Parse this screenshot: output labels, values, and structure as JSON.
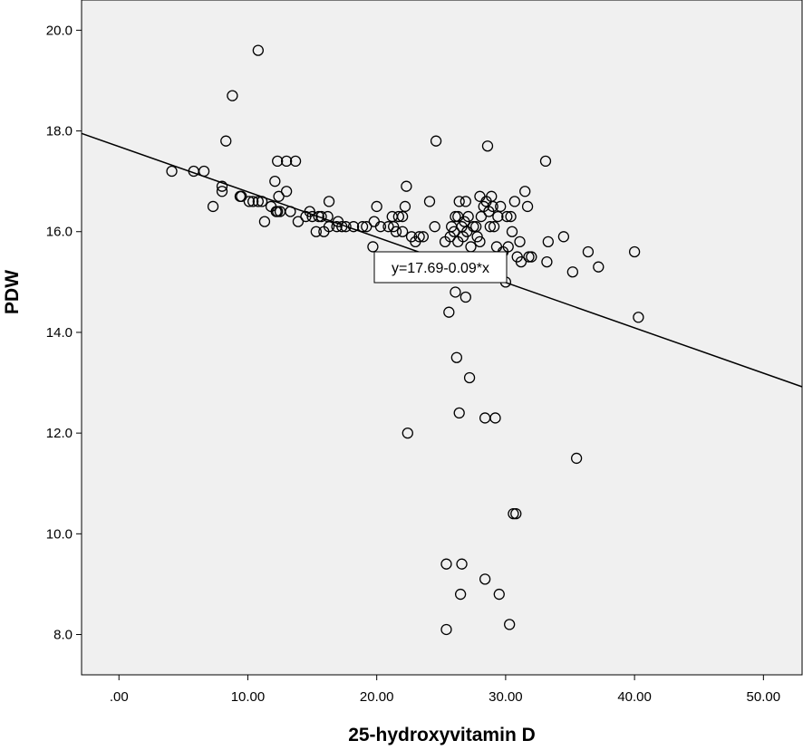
{
  "chart_data": {
    "type": "scatter",
    "xlabel": "25-hydroxyvitamin D",
    "ylabel": "PDW",
    "xlim": [
      -2.9,
      53.0
    ],
    "ylim": [
      7.2,
      20.6
    ],
    "x_ticks": [
      0,
      10,
      20,
      30,
      40,
      50
    ],
    "x_tick_labels": [
      ".00",
      "10.00",
      "20.00",
      "30.00",
      "40.00",
      "50.00"
    ],
    "y_ticks": [
      8,
      10,
      12,
      14,
      16,
      18,
      20
    ],
    "y_tick_labels": [
      "8.0",
      "10.0",
      "12.0",
      "14.0",
      "16.0",
      "18.0",
      "20.0"
    ],
    "grid": false,
    "background_color": "#f0f0f0",
    "marker": "open-circle",
    "fit_line": {
      "intercept": 17.69,
      "slope": -0.09,
      "label": "y=17.69-0.09*x"
    },
    "points": [
      [
        4.1,
        17.2
      ],
      [
        5.8,
        17.2
      ],
      [
        6.6,
        17.2
      ],
      [
        7.3,
        16.5
      ],
      [
        8.0,
        16.9
      ],
      [
        8.0,
        16.8
      ],
      [
        8.3,
        17.8
      ],
      [
        8.8,
        18.7
      ],
      [
        9.4,
        16.7
      ],
      [
        9.5,
        16.7
      ],
      [
        10.1,
        16.6
      ],
      [
        10.4,
        16.6
      ],
      [
        10.8,
        16.6
      ],
      [
        11.1,
        16.6
      ],
      [
        11.3,
        16.2
      ],
      [
        10.8,
        19.6
      ],
      [
        11.8,
        16.5
      ],
      [
        12.1,
        17.0
      ],
      [
        12.2,
        16.4
      ],
      [
        12.3,
        16.4
      ],
      [
        12.3,
        17.4
      ],
      [
        12.5,
        16.4
      ],
      [
        12.4,
        16.7
      ],
      [
        13.0,
        16.8
      ],
      [
        13.0,
        17.4
      ],
      [
        13.3,
        16.4
      ],
      [
        13.7,
        17.4
      ],
      [
        13.9,
        16.2
      ],
      [
        14.5,
        16.3
      ],
      [
        14.8,
        16.4
      ],
      [
        15.0,
        16.3
      ],
      [
        15.3,
        16.0
      ],
      [
        15.5,
        16.3
      ],
      [
        15.7,
        16.3
      ],
      [
        15.9,
        16.0
      ],
      [
        16.2,
        16.3
      ],
      [
        16.3,
        16.1
      ],
      [
        16.3,
        16.6
      ],
      [
        16.9,
        16.1
      ],
      [
        17.0,
        16.2
      ],
      [
        17.3,
        16.1
      ],
      [
        17.6,
        16.1
      ],
      [
        18.2,
        16.1
      ],
      [
        18.9,
        16.1
      ],
      [
        19.2,
        16.1
      ],
      [
        19.7,
        15.7
      ],
      [
        19.8,
        16.2
      ],
      [
        20.0,
        16.5
      ],
      [
        20.3,
        16.1
      ],
      [
        20.7,
        15.1
      ],
      [
        20.9,
        16.1
      ],
      [
        21.2,
        16.3
      ],
      [
        21.3,
        16.1
      ],
      [
        21.5,
        16.0
      ],
      [
        21.7,
        16.3
      ],
      [
        22.0,
        16.3
      ],
      [
        22.0,
        16.0
      ],
      [
        22.2,
        16.5
      ],
      [
        22.3,
        16.9
      ],
      [
        22.4,
        12.0
      ],
      [
        22.7,
        15.9
      ],
      [
        23.0,
        15.8
      ],
      [
        23.3,
        15.9
      ],
      [
        23.6,
        15.9
      ],
      [
        24.1,
        16.6
      ],
      [
        24.5,
        16.1
      ],
      [
        24.6,
        17.8
      ],
      [
        25.3,
        15.8
      ],
      [
        25.4,
        9.4
      ],
      [
        25.4,
        8.1
      ],
      [
        25.6,
        14.4
      ],
      [
        25.7,
        15.9
      ],
      [
        25.8,
        16.1
      ],
      [
        26.0,
        16.0
      ],
      [
        26.1,
        16.3
      ],
      [
        26.1,
        14.8
      ],
      [
        26.2,
        13.5
      ],
      [
        26.3,
        16.3
      ],
      [
        26.3,
        15.8
      ],
      [
        26.4,
        12.4
      ],
      [
        26.4,
        16.6
      ],
      [
        26.5,
        8.8
      ],
      [
        26.6,
        9.4
      ],
      [
        26.6,
        16.1
      ],
      [
        26.7,
        15.9
      ],
      [
        26.8,
        16.2
      ],
      [
        26.9,
        14.7
      ],
      [
        26.9,
        16.6
      ],
      [
        27.0,
        16.0
      ],
      [
        27.1,
        16.3
      ],
      [
        27.2,
        13.1
      ],
      [
        27.3,
        15.7
      ],
      [
        27.5,
        16.1
      ],
      [
        27.7,
        16.1
      ],
      [
        27.8,
        15.9
      ],
      [
        28.0,
        16.7
      ],
      [
        28.0,
        15.8
      ],
      [
        28.1,
        16.3
      ],
      [
        28.3,
        16.5
      ],
      [
        28.4,
        12.3
      ],
      [
        28.4,
        9.1
      ],
      [
        28.5,
        16.6
      ],
      [
        28.6,
        17.7
      ],
      [
        28.7,
        16.4
      ],
      [
        28.8,
        16.1
      ],
      [
        28.9,
        16.7
      ],
      [
        29.0,
        16.5
      ],
      [
        29.1,
        16.1
      ],
      [
        29.2,
        12.3
      ],
      [
        29.3,
        15.7
      ],
      [
        29.4,
        16.3
      ],
      [
        29.5,
        8.8
      ],
      [
        29.6,
        16.5
      ],
      [
        29.8,
        15.6
      ],
      [
        30.0,
        15.0
      ],
      [
        30.1,
        16.3
      ],
      [
        30.2,
        15.7
      ],
      [
        30.3,
        8.2
      ],
      [
        30.4,
        16.3
      ],
      [
        30.5,
        16.0
      ],
      [
        30.6,
        10.4
      ],
      [
        30.8,
        10.4
      ],
      [
        30.7,
        16.6
      ],
      [
        30.9,
        15.5
      ],
      [
        31.1,
        15.8
      ],
      [
        31.2,
        15.4
      ],
      [
        31.5,
        16.8
      ],
      [
        31.7,
        16.5
      ],
      [
        31.8,
        15.5
      ],
      [
        32.0,
        15.5
      ],
      [
        33.1,
        17.4
      ],
      [
        33.2,
        15.4
      ],
      [
        33.3,
        15.8
      ],
      [
        34.5,
        15.9
      ],
      [
        35.2,
        15.2
      ],
      [
        35.5,
        11.5
      ],
      [
        36.4,
        15.6
      ],
      [
        37.2,
        15.3
      ],
      [
        40.0,
        15.6
      ],
      [
        40.3,
        14.3
      ]
    ]
  }
}
